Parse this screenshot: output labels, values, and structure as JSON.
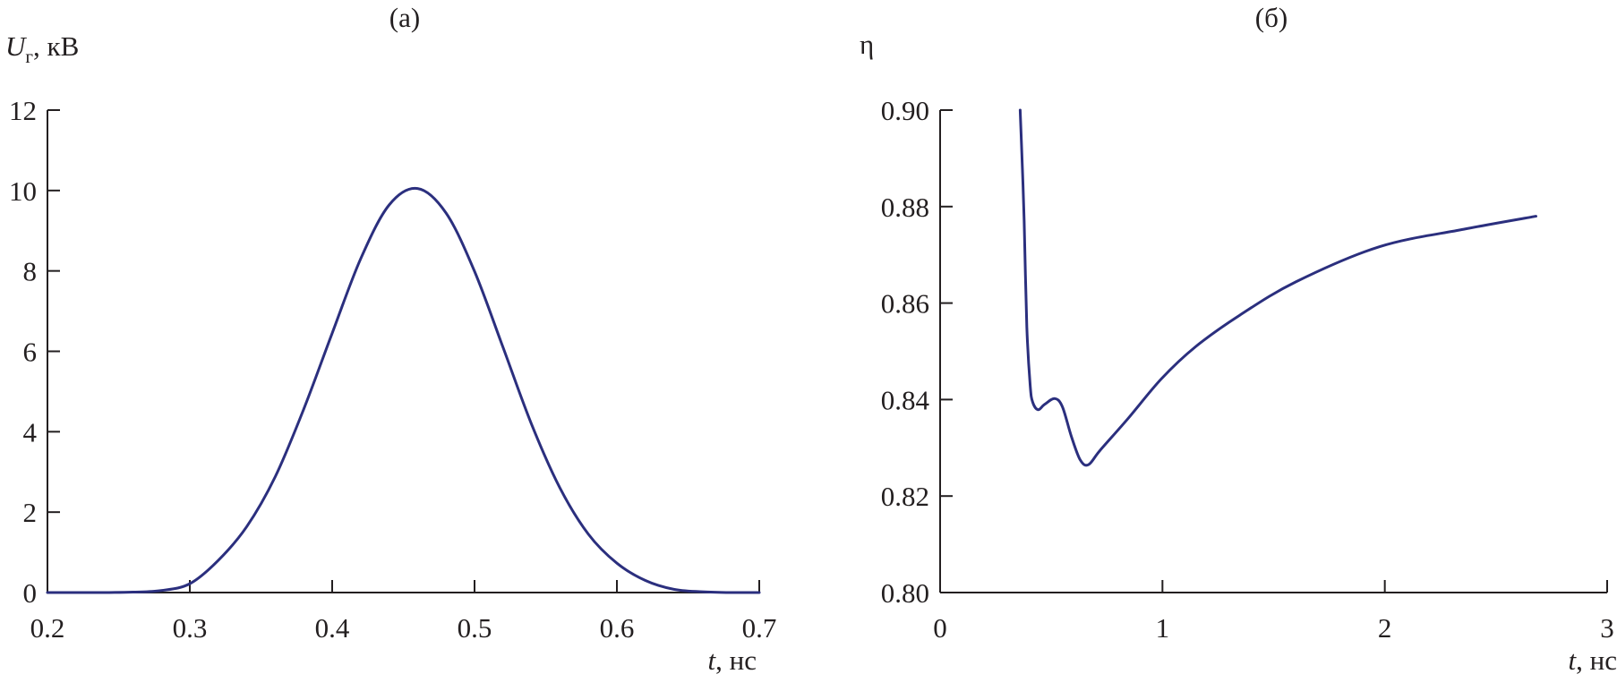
{
  "chart_data": [
    {
      "type": "line",
      "title": "(а)",
      "xlabel": "t, нс",
      "xlabel_var": "t",
      "xlabel_unit": ", нс",
      "ylabel": "Uг, кВ",
      "ylabel_var": "U",
      "ylabel_sub": "г",
      "ylabel_unit": ", кВ",
      "xlim": [
        0.2,
        0.7
      ],
      "ylim": [
        0,
        12
      ],
      "xticks": [
        "0.2",
        "0.3",
        "0.4",
        "0.5",
        "0.6",
        "0.7"
      ],
      "yticks": [
        "0",
        "2",
        "4",
        "6",
        "8",
        "10",
        "12"
      ],
      "grid": false,
      "color": "#2b2f7e",
      "x": [
        0.2,
        0.22,
        0.24,
        0.26,
        0.28,
        0.3,
        0.32,
        0.34,
        0.36,
        0.38,
        0.4,
        0.42,
        0.44,
        0.46,
        0.48,
        0.5,
        0.52,
        0.54,
        0.56,
        0.58,
        0.6,
        0.62,
        0.64,
        0.66,
        0.68,
        0.7
      ],
      "y": [
        0,
        0,
        0,
        0.01,
        0.05,
        0.22,
        0.8,
        1.64,
        2.88,
        4.56,
        6.45,
        8.3,
        9.64,
        10.05,
        9.44,
        7.99,
        6.1,
        4.19,
        2.6,
        1.45,
        0.73,
        0.3,
        0.08,
        0.02,
        0,
        0
      ]
    },
    {
      "type": "line",
      "title": "(б)",
      "xlabel": "t, нс",
      "xlabel_var": "t",
      "xlabel_unit": ", нс",
      "ylabel": "η",
      "xlim": [
        0,
        3
      ],
      "ylim": [
        0.8,
        0.9
      ],
      "xticks": [
        "0",
        "1",
        "2",
        "3"
      ],
      "yticks": [
        "0.80",
        "0.82",
        "0.84",
        "0.86",
        "0.88",
        "0.90"
      ],
      "grid": false,
      "color": "#2b2f7e",
      "x": [
        0.36,
        0.37,
        0.378,
        0.39,
        0.405,
        0.416,
        0.44,
        0.47,
        0.516,
        0.55,
        0.59,
        0.63,
        0.667,
        0.72,
        0.844,
        0.995,
        1.15,
        1.348,
        1.6,
        1.977,
        2.355,
        2.68
      ],
      "y": [
        0.9,
        0.888,
        0.877,
        0.855,
        0.843,
        0.8395,
        0.8379,
        0.839,
        0.8402,
        0.8385,
        0.8324,
        0.8275,
        0.8265,
        0.8295,
        0.836,
        0.8443,
        0.851,
        0.8575,
        0.8644,
        0.8717,
        0.8753,
        0.878
      ]
    }
  ]
}
